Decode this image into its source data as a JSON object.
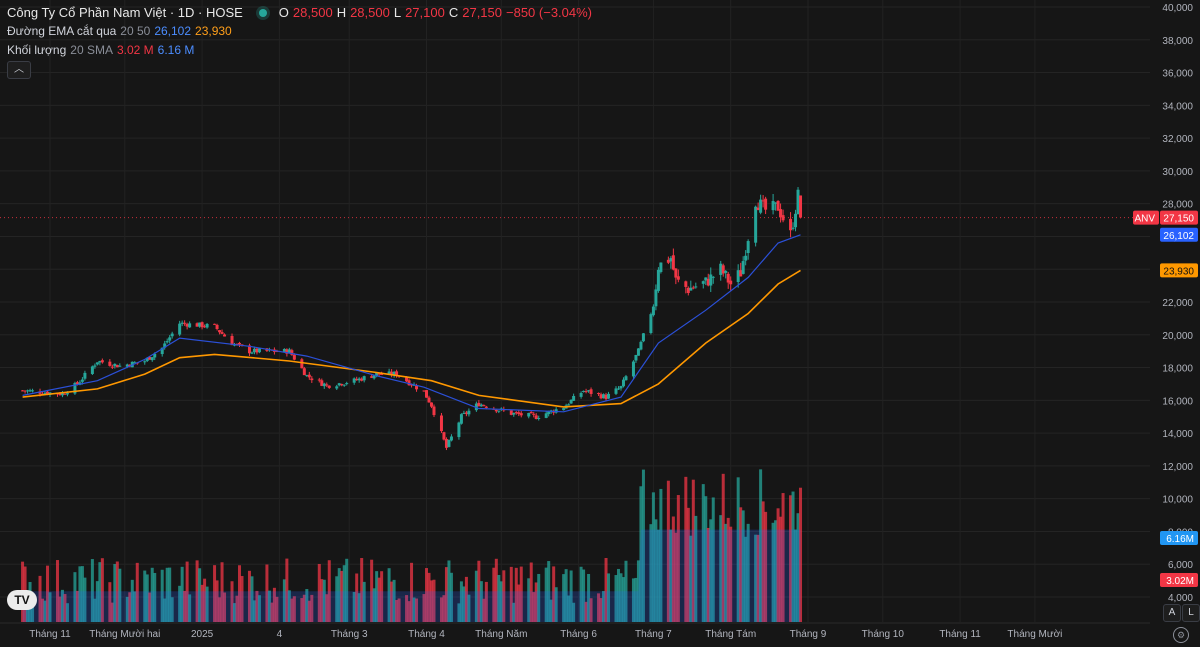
{
  "header": {
    "title": "Công Ty Cổ Phần Nam Việt · 1D · HOSE",
    "ohlc": {
      "o_label": "O",
      "o": "28,500",
      "h_label": "H",
      "h": "28,500",
      "l_label": "L",
      "l": "27,100",
      "c_label": "C",
      "c": "27,150",
      "change": "−850 (−3.04%)"
    },
    "ema": {
      "label": "Đường EMA cắt qua",
      "params": "20 50",
      "v1": "26,102",
      "v2": "23,930"
    },
    "volume": {
      "label": "Khối lượng",
      "params": "20 SMA",
      "v1": "3.02 M",
      "v2": "6.16 M"
    },
    "collapse_icon": "chevron-up-icon"
  },
  "price_scale": [
    "40,000",
    "38,000",
    "36,000",
    "34,000",
    "32,000",
    "30,000",
    "28,000",
    "26,000",
    "24,000",
    "22,000",
    "20,000",
    "18,000",
    "16,000",
    "14,000",
    "12,000",
    "10,000",
    "8,000",
    "6,000",
    "4,000"
  ],
  "badges": {
    "symbol": "ANV",
    "last_price": "27,150",
    "ema_fast": "26,102",
    "ema_slow": "23,930",
    "vol_sma": "6.16M",
    "vol_last": "3.02M"
  },
  "time_axis": [
    "Tháng 11",
    "Tháng Mười hai",
    "2025",
    "4",
    "Tháng 3",
    "Tháng 4",
    "Tháng Năm",
    "Tháng 6",
    "Tháng 7",
    "Tháng Tám",
    "Tháng 9",
    "Tháng 10",
    "Tháng 11",
    "Tháng Mười"
  ],
  "footer": {
    "logo": "TV",
    "auto_label": "A",
    "log_label": "L",
    "settings_icon": "gear-icon"
  },
  "colors": {
    "up": "#26a69a",
    "down": "#f23645",
    "ema_fast": "#2b50d8",
    "ema_slow": "#ff9800",
    "vol_sma_fill": "#2962ff",
    "background": "#161616"
  },
  "chart_data": {
    "type": "candlestick",
    "symbol": "ANV",
    "interval": "1D",
    "ylim": [
      4000,
      40000
    ],
    "anchors": [
      {
        "date": "2024-10-21",
        "price": 16600
      },
      {
        "date": "2024-11-06",
        "price": 16400
      },
      {
        "date": "2024-11-12",
        "price": 17000
      },
      {
        "date": "2024-11-20",
        "price": 18400
      },
      {
        "date": "2024-11-29",
        "price": 18100
      },
      {
        "date": "2024-12-09",
        "price": 18400
      },
      {
        "date": "2024-12-16",
        "price": 19200
      },
      {
        "date": "2024-12-23",
        "price": 20700
      },
      {
        "date": "2025-01-06",
        "price": 20500
      },
      {
        "date": "2025-01-13",
        "price": 19500
      },
      {
        "date": "2025-01-20",
        "price": 19000
      },
      {
        "date": "2025-02-05",
        "price": 19000
      },
      {
        "date": "2025-02-12",
        "price": 17500
      },
      {
        "date": "2025-02-20",
        "price": 16900
      },
      {
        "date": "2025-03-03",
        "price": 17200
      },
      {
        "date": "2025-03-12",
        "price": 17600
      },
      {
        "date": "2025-03-20",
        "price": 17600
      },
      {
        "date": "2025-03-31",
        "price": 16500
      },
      {
        "date": "2025-04-03",
        "price": 15700
      },
      {
        "date": "2025-04-09",
        "price": 13100
      },
      {
        "date": "2025-04-15",
        "price": 15000
      },
      {
        "date": "2025-04-22",
        "price": 15800
      },
      {
        "date": "2025-05-05",
        "price": 15200
      },
      {
        "date": "2025-05-15",
        "price": 15000
      },
      {
        "date": "2025-05-26",
        "price": 15600
      },
      {
        "date": "2025-06-03",
        "price": 16600
      },
      {
        "date": "2025-06-12",
        "price": 16200
      },
      {
        "date": "2025-06-18",
        "price": 16800
      },
      {
        "date": "2025-06-25",
        "price": 19000
      },
      {
        "date": "2025-07-01",
        "price": 21800
      },
      {
        "date": "2025-07-03",
        "price": 24200
      },
      {
        "date": "2025-07-08",
        "price": 24700
      },
      {
        "date": "2025-07-10",
        "price": 23300
      },
      {
        "date": "2025-07-15",
        "price": 22800
      },
      {
        "date": "2025-07-22",
        "price": 23200
      },
      {
        "date": "2025-07-28",
        "price": 24000
      },
      {
        "date": "2025-08-01",
        "price": 23100
      },
      {
        "date": "2025-08-05",
        "price": 23800
      },
      {
        "date": "2025-08-08",
        "price": 26000
      },
      {
        "date": "2025-08-11",
        "price": 28200
      },
      {
        "date": "2025-08-15",
        "price": 27600
      },
      {
        "date": "2025-08-20",
        "price": 27800
      },
      {
        "date": "2025-08-25",
        "price": 26100
      },
      {
        "date": "2025-08-28",
        "price": 28500
      },
      {
        "date": "2025-08-29",
        "price": 27150
      }
    ],
    "ema_fast": {
      "name": "26,102",
      "points": [
        {
          "date": "2024-10-21",
          "price": 16300
        },
        {
          "date": "2024-11-20",
          "price": 17200
        },
        {
          "date": "2024-12-09",
          "price": 18500
        },
        {
          "date": "2024-12-23",
          "price": 19800
        },
        {
          "date": "2025-01-20",
          "price": 19300
        },
        {
          "date": "2025-02-12",
          "price": 18700
        },
        {
          "date": "2025-03-12",
          "price": 17500
        },
        {
          "date": "2025-03-31",
          "price": 16800
        },
        {
          "date": "2025-04-22",
          "price": 15500
        },
        {
          "date": "2025-05-26",
          "price": 15300
        },
        {
          "date": "2025-06-18",
          "price": 16200
        },
        {
          "date": "2025-07-03",
          "price": 19500
        },
        {
          "date": "2025-07-22",
          "price": 21500
        },
        {
          "date": "2025-08-08",
          "price": 23500
        },
        {
          "date": "2025-08-20",
          "price": 25600
        },
        {
          "date": "2025-08-29",
          "price": 26102
        }
      ]
    },
    "ema_slow": {
      "name": "23,930",
      "points": [
        {
          "date": "2024-10-21",
          "price": 16200
        },
        {
          "date": "2024-11-20",
          "price": 16700
        },
        {
          "date": "2024-12-09",
          "price": 17600
        },
        {
          "date": "2024-12-23",
          "price": 18600
        },
        {
          "date": "2025-01-06",
          "price": 18800
        },
        {
          "date": "2025-02-05",
          "price": 18400
        },
        {
          "date": "2025-03-12",
          "price": 17700
        },
        {
          "date": "2025-04-03",
          "price": 17200
        },
        {
          "date": "2025-04-22",
          "price": 16300
        },
        {
          "date": "2025-05-26",
          "price": 15600
        },
        {
          "date": "2025-06-18",
          "price": 15800
        },
        {
          "date": "2025-07-03",
          "price": 17000
        },
        {
          "date": "2025-07-22",
          "price": 19500
        },
        {
          "date": "2025-08-08",
          "price": 21300
        },
        {
          "date": "2025-08-20",
          "price": 23100
        },
        {
          "date": "2025-08-29",
          "price": 23930
        }
      ]
    },
    "volume_highlights": [
      {
        "date": "2025-07-03",
        "volume": "high"
      },
      {
        "date": "2025-07-28",
        "volume": "high"
      },
      {
        "date": "2025-08-05",
        "volume": "high"
      },
      {
        "date": "2025-08-29",
        "volume": "3.02 M"
      }
    ]
  }
}
